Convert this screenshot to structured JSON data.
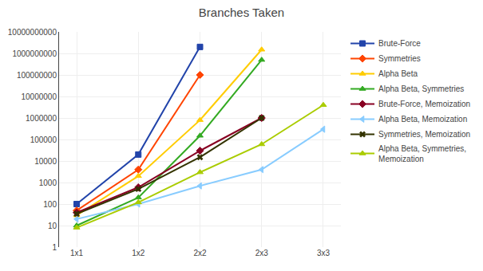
{
  "chart_data": {
    "type": "line",
    "title": "Branches Taken",
    "categories": [
      "1x1",
      "1x2",
      "2x2",
      "2x3",
      "3x3"
    ],
    "series": [
      {
        "name": "Brute-Force",
        "color": "#2244AA",
        "marker": "square",
        "values": [
          100,
          20000,
          2000000000,
          null,
          null
        ]
      },
      {
        "name": "Symmetries",
        "color": "#FF4400",
        "marker": "diamond",
        "values": [
          50,
          4000,
          100000000,
          null,
          null
        ]
      },
      {
        "name": "Alpha Beta",
        "color": "#FFCC00",
        "marker": "triangle-up",
        "values": [
          30,
          2000,
          800000,
          1500000000,
          null
        ]
      },
      {
        "name": "Alpha Beta, Symmetries",
        "color": "#33AA22",
        "marker": "triangle-up",
        "values": [
          10,
          200,
          150000,
          500000000,
          null
        ]
      },
      {
        "name": "Brute-Force, Memoization",
        "color": "#880022",
        "marker": "diamond",
        "values": [
          40,
          600,
          30000,
          1000000,
          null
        ]
      },
      {
        "name": "Alpha Beta, Memoization",
        "color": "#88CCFF",
        "marker": "triangle-left",
        "values": [
          20,
          100,
          700,
          4000,
          300000
        ]
      },
      {
        "name": "Symmetries, Memoization",
        "color": "#333300",
        "marker": "x",
        "values": [
          35,
          500,
          15000,
          1000000,
          null
        ]
      },
      {
        "name": "Alpha Beta, Symmetries,\nMemoization",
        "color": "#AACC00",
        "marker": "triangle-up",
        "values": [
          8,
          120,
          3000,
          60000,
          4000000
        ]
      }
    ],
    "ylim": [
      1,
      10000000000
    ],
    "yticks": [
      1,
      10,
      100,
      1000,
      10000,
      100000,
      1000000,
      10000000,
      100000000,
      1000000000,
      10000000000
    ],
    "log": "y",
    "grid": true,
    "legend": "right"
  }
}
